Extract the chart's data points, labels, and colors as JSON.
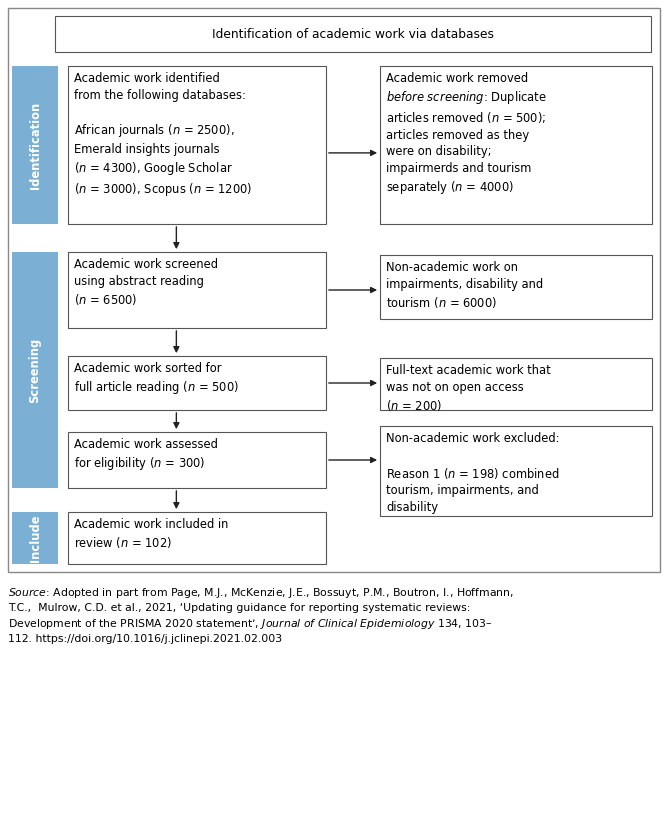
{
  "title": "Identification of academic work via databases",
  "lb1_text": "Academic work identified\nfrom the following databases:\n\nAfrican journals ($n$ = 2500),\nEmerald insights journals\n($n$ = 4300), Google Scholar\n($n$ = 3000), Scopus ($n$ = 1200)",
  "rb1_text": "Academic work removed\n$\\it{before\\ screening}$: Duplicate\narticles removed ($n$ = 500);\narticles removed as they\nwere on disability;\nimpairmerds and tourism\nseparately ($n$ = 4000)",
  "lb2_text": "Academic work screened\nusing abstract reading\n($n$ = 6500)",
  "rb2_text": "Non-academic work on\nimpairments, disability and\ntourism ($n$ = 6000)",
  "lb3_text": "Academic work sorted for\nfull article reading ($n$ = 500)",
  "rb3_text": "Full-text academic work that\nwas not on open access\n($n$ = 200)",
  "lb4_text": "Academic work assessed\nfor eligibility ($n$ = 300)",
  "rb4_text": "Non-academic work excluded:\n\nReason 1 ($n$ = 198) combined\ntourism, impairments, and\ndisability",
  "lb5_text": "Academic work included in\nreview ($n$ = 102)",
  "sidebar_id": "Identification",
  "sidebar_sc": "Screening",
  "sidebar_in": "Include",
  "source_text_1": "$\\it{Source}$: Adopted in part from Page, M.J., McKenzie, J.E., Bossuyt, P.M., Boutron, I., Hoffmann,",
  "source_text_2": "T.C.,  Mulrow, C.D. et al., 2021, ‘Updating guidance for reporting systematic reviews:",
  "source_text_3": "Development of the PRISMA 2020 statement’, $\\it{Journal\\ of\\ Clinical\\ Epidemiology}$ 134, 103–",
  "source_text_4": "112. https://doi.org/10.1016/j.jclinepi.2021.02.003",
  "sidebar_color": "#7BAFD4",
  "box_edge_color": "#555555",
  "bg_color": "#ffffff",
  "arrow_color": "#222222",
  "text_color": "#000000",
  "fs": 8.3,
  "fs_title": 8.8,
  "fs_source": 7.8
}
